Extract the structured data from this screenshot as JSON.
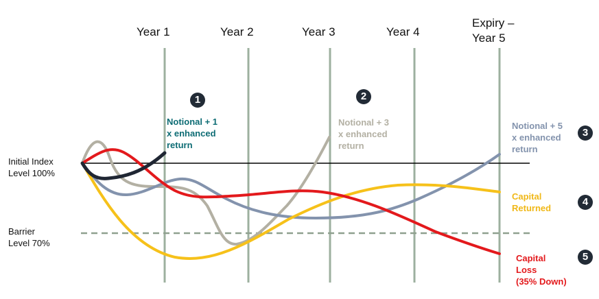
{
  "colors": {
    "gridline": "#9db09f",
    "barrier": "#8fa08f",
    "initial_line": "#000000",
    "path1": "#1f2633",
    "path2": "#b3b0a3",
    "path3": "#8393ad",
    "path4": "#f6c11a",
    "path5": "#e3191c",
    "text1": "#0d6c74",
    "text2": "#b3b0a3",
    "text3": "#8393ad",
    "text4": "#f0b818",
    "text5": "#e3191c",
    "badge": "#222b36"
  },
  "years": [
    "Year 1",
    "Year 2",
    "Year 3",
    "Year 4",
    "Expiry –",
    "Year 5"
  ],
  "initial_label": [
    "Initial Index",
    "Level  100%"
  ],
  "barrier_label": [
    "Barrier",
    "Level 70%"
  ],
  "outcomes": [
    {
      "num": "1",
      "lines": [
        "Notional + 1",
        "x enhanced",
        "return"
      ]
    },
    {
      "num": "2",
      "lines": [
        "Notional + 3",
        "x enhanced",
        "return"
      ]
    },
    {
      "num": "3",
      "lines": [
        "Notional + 5",
        "x enhanced",
        "return"
      ]
    },
    {
      "num": "4",
      "lines": [
        "Capital",
        "Returned"
      ]
    },
    {
      "num": "5",
      "lines": [
        "Capital",
        "Loss",
        "(35% Down)"
      ]
    }
  ]
}
